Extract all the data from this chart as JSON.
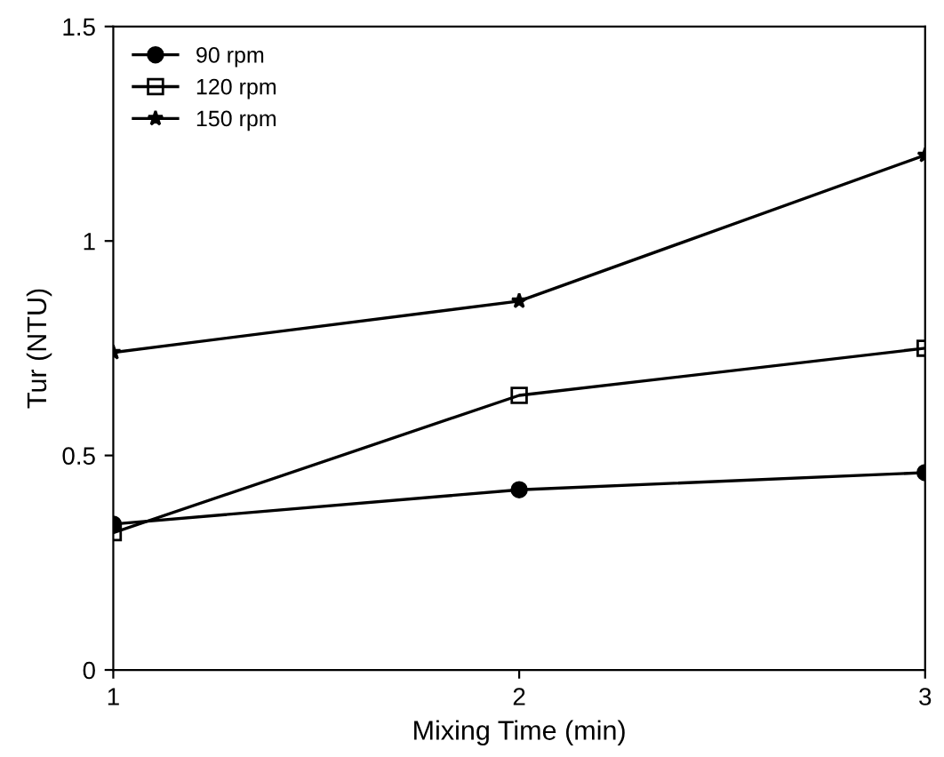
{
  "chart_data": {
    "type": "line",
    "xlabel": "Mixing Time (min)",
    "ylabel": "Tur (NTU)",
    "x": [
      1,
      2,
      3
    ],
    "series": [
      {
        "name": "90 rpm",
        "color": "#000000",
        "marker": "circle",
        "values": [
          0.34,
          0.42,
          0.46
        ]
      },
      {
        "name": "120 rpm",
        "color": "#000000",
        "marker": "square",
        "values": [
          0.32,
          0.64,
          0.75
        ]
      },
      {
        "name": "150 rpm",
        "color": "#000000",
        "marker": "star",
        "values": [
          0.74,
          0.86,
          1.2
        ]
      }
    ],
    "xlim": [
      1,
      3
    ],
    "xticks": [
      1,
      2,
      3
    ],
    "ylim": [
      0,
      1.5
    ],
    "yticks": [
      0,
      0.5,
      1,
      1.5
    ],
    "grid": false,
    "legend": "top left",
    "line_style": "solid"
  }
}
